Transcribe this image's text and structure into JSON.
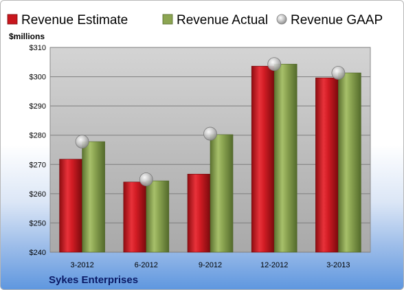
{
  "chart_data": {
    "type": "bar",
    "categories": [
      "3-2012",
      "6-2012",
      "9-2012",
      "12-2012",
      "3-2013"
    ],
    "series": [
      {
        "name": "Revenue Estimate",
        "values": [
          271.8,
          264.0,
          266.7,
          303.6,
          299.6
        ],
        "color": "#c8161d"
      },
      {
        "name": "Revenue Actual",
        "values": [
          277.8,
          264.4,
          280.2,
          304.3,
          301.3
        ],
        "color": "#8ca552"
      },
      {
        "name": "Revenue GAAP",
        "values": [
          277.8,
          264.9,
          280.5,
          304.3,
          301.3
        ],
        "color": "#c0c0c0",
        "kind": "marker"
      }
    ],
    "ylabel": "$millions",
    "ylim": [
      240,
      310
    ],
    "yticks": [
      240,
      250,
      260,
      270,
      280,
      290,
      300,
      310
    ],
    "ytick_labels": [
      "$240",
      "$250",
      "$260",
      "$270",
      "$280",
      "$290",
      "$300",
      "$310"
    ],
    "legend_position": "top",
    "grid": true,
    "company": "Sykes Enterprises"
  }
}
